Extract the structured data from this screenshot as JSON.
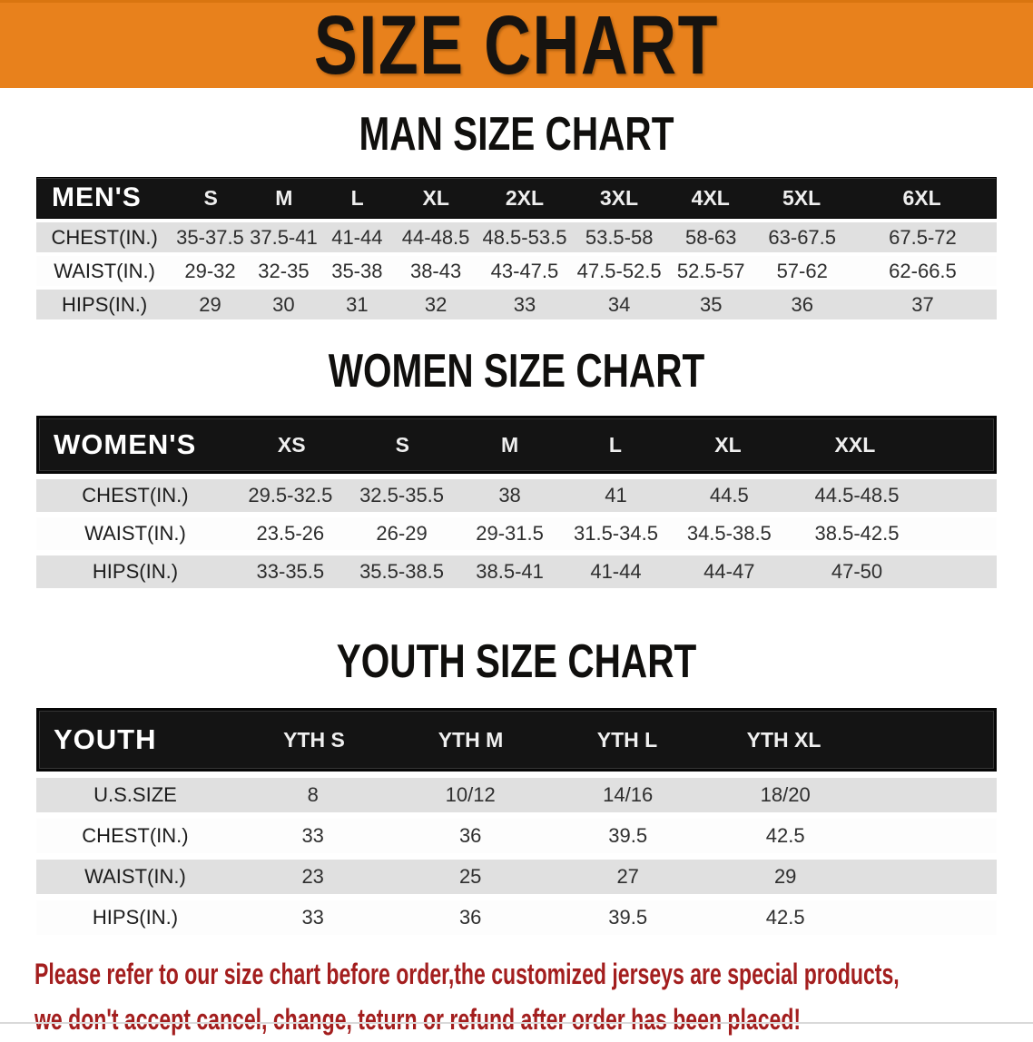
{
  "banner": {
    "title": "SIZE CHART",
    "background_color": "#E8811C",
    "text_color": "#161310"
  },
  "sections": {
    "men": {
      "heading": "MAN SIZE CHART",
      "header_label": "MEN'S",
      "columns": [
        "S",
        "M",
        "L",
        "XL",
        "2XL",
        "3XL",
        "4XL",
        "5XL",
        "6XL"
      ],
      "rows": [
        {
          "label": "CHEST(IN.)",
          "values": [
            "35-37.5",
            "37.5-41",
            "41-44",
            "44-48.5",
            "48.5-53.5",
            "53.5-58",
            "58-63",
            "63-67.5",
            "67.5-72"
          ]
        },
        {
          "label": "WAIST(IN.)",
          "values": [
            "29-32",
            "32-35",
            "35-38",
            "38-43",
            "43-47.5",
            "47.5-52.5",
            "52.5-57",
            "57-62",
            "62-66.5"
          ]
        },
        {
          "label": "HIPS(IN.)",
          "values": [
            "29",
            "30",
            "31",
            "32",
            "33",
            "34",
            "35",
            "36",
            "37"
          ]
        }
      ]
    },
    "women": {
      "heading": "WOMEN SIZE CHART",
      "header_label": "WOMEN'S",
      "columns": [
        "XS",
        "S",
        "M",
        "L",
        "XL",
        "XXL"
      ],
      "rows": [
        {
          "label": "CHEST(IN.)",
          "values": [
            "29.5-32.5",
            "32.5-35.5",
            "38",
            "41",
            "44.5",
            "44.5-48.5"
          ]
        },
        {
          "label": "WAIST(IN.)",
          "values": [
            "23.5-26",
            "26-29",
            "29-31.5",
            "31.5-34.5",
            "34.5-38.5",
            "38.5-42.5"
          ]
        },
        {
          "label": "HIPS(IN.)",
          "values": [
            "33-35.5",
            "35.5-38.5",
            "38.5-41",
            "41-44",
            "44-47",
            "47-50"
          ]
        }
      ]
    },
    "youth": {
      "heading": "YOUTH SIZE CHART",
      "header_label": "YOUTH",
      "columns": [
        "YTH S",
        "YTH M",
        "YTH L",
        "YTH XL"
      ],
      "rows": [
        {
          "label": "U.S.SIZE",
          "values": [
            "8",
            "10/12",
            "14/16",
            "18/20"
          ]
        },
        {
          "label": "CHEST(IN.)",
          "values": [
            "33",
            "36",
            "39.5",
            "42.5"
          ]
        },
        {
          "label": "WAIST(IN.)",
          "values": [
            "23",
            "25",
            "27",
            "29"
          ]
        },
        {
          "label": "HIPS(IN.)",
          "values": [
            "33",
            "36",
            "39.5",
            "42.5"
          ]
        }
      ]
    }
  },
  "disclaimer": {
    "line1": "Please refer to our size chart before order,the customized jerseys are special products,",
    "line2": "we don't accept cancel, change, teturn or refund after order has been placed!",
    "text_color": "#A31E1E"
  }
}
